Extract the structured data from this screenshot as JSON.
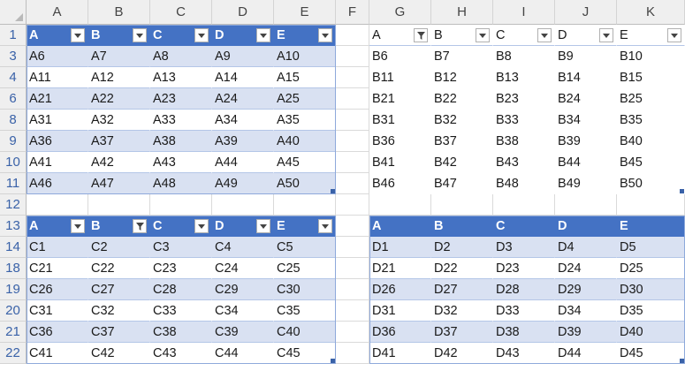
{
  "columns": [
    "A",
    "B",
    "C",
    "D",
    "E",
    "F",
    "G",
    "H",
    "I",
    "J",
    "K"
  ],
  "rows": [
    "1",
    "3",
    "4",
    "6",
    "8",
    "9",
    "10",
    "11",
    "12",
    "13",
    "14",
    "18",
    "19",
    "20",
    "21",
    "22"
  ],
  "table1": {
    "headers": [
      "A",
      "B",
      "C",
      "D",
      "E"
    ],
    "filtered_column": null,
    "rows": [
      [
        "A6",
        "A7",
        "A8",
        "A9",
        "A10"
      ],
      [
        "A11",
        "A12",
        "A13",
        "A14",
        "A15"
      ],
      [
        "A21",
        "A22",
        "A23",
        "A24",
        "A25"
      ],
      [
        "A31",
        "A32",
        "A33",
        "A34",
        "A35"
      ],
      [
        "A36",
        "A37",
        "A38",
        "A39",
        "A40"
      ],
      [
        "A41",
        "A42",
        "A43",
        "A44",
        "A45"
      ],
      [
        "A46",
        "A47",
        "A48",
        "A49",
        "A50"
      ]
    ]
  },
  "table2": {
    "headers": [
      "A",
      "B",
      "C",
      "D",
      "E"
    ],
    "filtered_column": "A",
    "style": "no-fill",
    "rows": [
      [
        "B6",
        "B7",
        "B8",
        "B9",
        "B10"
      ],
      [
        "B11",
        "B12",
        "B13",
        "B14",
        "B15"
      ],
      [
        "B21",
        "B22",
        "B23",
        "B24",
        "B25"
      ],
      [
        "B31",
        "B32",
        "B33",
        "B34",
        "B35"
      ],
      [
        "B36",
        "B37",
        "B38",
        "B39",
        "B40"
      ],
      [
        "B41",
        "B42",
        "B43",
        "B44",
        "B45"
      ],
      [
        "B46",
        "B47",
        "B48",
        "B49",
        "B50"
      ]
    ]
  },
  "table3": {
    "headers": [
      "A",
      "B",
      "C",
      "D",
      "E"
    ],
    "filtered_column": "B",
    "rows": [
      [
        "C1",
        "C2",
        "C3",
        "C4",
        "C5"
      ],
      [
        "C21",
        "C22",
        "C23",
        "C24",
        "C25"
      ],
      [
        "C26",
        "C27",
        "C28",
        "C29",
        "C30"
      ],
      [
        "C31",
        "C32",
        "C33",
        "C34",
        "C35"
      ],
      [
        "C36",
        "C37",
        "C38",
        "C39",
        "C40"
      ],
      [
        "C41",
        "C42",
        "C43",
        "C44",
        "C45"
      ]
    ]
  },
  "table4": {
    "headers": [
      "A",
      "B",
      "C",
      "D",
      "E"
    ],
    "filtered_column": null,
    "has_filter_buttons": false,
    "rows": [
      [
        "D1",
        "D2",
        "D3",
        "D4",
        "D5"
      ],
      [
        "D21",
        "D22",
        "D23",
        "D24",
        "D25"
      ],
      [
        "D26",
        "D27",
        "D28",
        "D29",
        "D30"
      ],
      [
        "D31",
        "D32",
        "D33",
        "D34",
        "D35"
      ],
      [
        "D36",
        "D37",
        "D38",
        "D39",
        "D40"
      ],
      [
        "D41",
        "D42",
        "D43",
        "D44",
        "D45"
      ]
    ]
  },
  "colors": {
    "header_fill": "#4472c4",
    "band_fill": "#d9e1f2",
    "row_header_text": "#3a62a8"
  },
  "icons": {
    "dropdown": "chevron-down-icon",
    "filter": "filter-icon"
  }
}
